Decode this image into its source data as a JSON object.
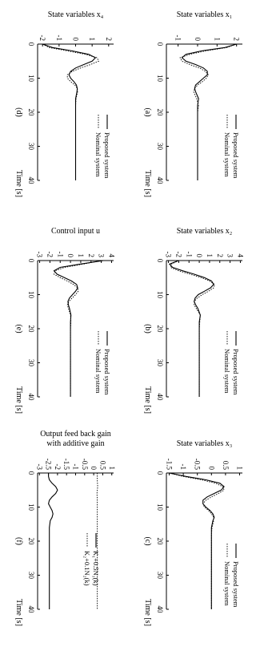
{
  "chart_data": [
    {
      "type": "line",
      "panel_label": "(a)",
      "ylabel": "State variables x₁",
      "xlabel": "Time [s]",
      "xlim": [
        0,
        40
      ],
      "ylim": [
        -1.6,
        2.3
      ],
      "xticks": [
        "0",
        "10",
        "20",
        "30",
        "40"
      ],
      "yticks": [
        "2",
        "1",
        "0",
        "-1"
      ],
      "ytick_values": [
        2,
        1,
        0,
        -1
      ],
      "legend_position": "top-right",
      "series": [
        {
          "name": "Proposed system",
          "style": "solid",
          "x": [
            0,
            1,
            2,
            3,
            4,
            5,
            6,
            7,
            8,
            9,
            10,
            11,
            12,
            13,
            14,
            16,
            18,
            20,
            24,
            28,
            32,
            36,
            40
          ],
          "y": [
            2.0,
            1.4,
            0.2,
            -0.6,
            -0.8,
            -0.6,
            -0.1,
            0.3,
            0.5,
            0.5,
            0.3,
            0.1,
            -0.1,
            -0.15,
            -0.1,
            0.05,
            0.0,
            0.0,
            0.0,
            0.0,
            0.0,
            0.0,
            0.0
          ]
        },
        {
          "name": "Nominal system",
          "style": "dotted",
          "x": [
            0,
            1,
            2,
            3,
            4,
            5,
            6,
            7,
            8,
            9,
            10,
            11,
            12,
            13,
            14,
            16,
            18,
            20,
            24,
            28,
            32,
            36,
            40
          ],
          "y": [
            2.0,
            1.5,
            0.4,
            -0.4,
            -0.9,
            -0.8,
            -0.4,
            0.1,
            0.4,
            0.55,
            0.45,
            0.25,
            0.0,
            -0.15,
            -0.2,
            -0.05,
            0.05,
            0.0,
            0.0,
            0.0,
            0.0,
            0.0,
            0.0
          ]
        }
      ]
    },
    {
      "type": "line",
      "panel_label": "(b)",
      "ylabel": "State variables x₂",
      "xlabel": "Time [s]",
      "xlim": [
        0,
        40
      ],
      "ylim": [
        -3.2,
        4.2
      ],
      "xticks": [
        "0",
        "10",
        "20",
        "30",
        "40"
      ],
      "yticks": [
        "4",
        "3",
        "2",
        "1",
        "0",
        "-1",
        "-2",
        "-3"
      ],
      "ytick_values": [
        4,
        3,
        2,
        1,
        0,
        -1,
        -2,
        -3
      ],
      "legend_position": "top-right",
      "series": [
        {
          "name": "Proposed system",
          "style": "solid",
          "x": [
            0,
            1,
            2,
            3,
            4,
            5,
            6,
            7,
            8,
            9,
            10,
            11,
            12,
            13,
            14,
            16,
            18,
            20,
            24,
            28,
            32,
            36,
            40
          ],
          "y": [
            -2.0,
            -2.9,
            -2.6,
            -1.6,
            -0.5,
            0.5,
            1.2,
            1.4,
            1.1,
            0.5,
            -0.1,
            -0.4,
            -0.5,
            -0.35,
            -0.15,
            0.1,
            0.0,
            0.0,
            0.0,
            0.0,
            0.0,
            0.0,
            0.0
          ]
        },
        {
          "name": "Nominal system",
          "style": "dotted",
          "x": [
            0,
            1,
            2,
            3,
            4,
            5,
            6,
            7,
            8,
            9,
            10,
            11,
            12,
            13,
            14,
            16,
            18,
            20,
            24,
            28,
            32,
            36,
            40
          ],
          "y": [
            -2.0,
            -2.7,
            -2.8,
            -2.0,
            -0.9,
            0.2,
            1.0,
            1.5,
            1.4,
            0.9,
            0.3,
            -0.2,
            -0.5,
            -0.5,
            -0.3,
            0.1,
            0.05,
            0.0,
            0.0,
            0.0,
            0.0,
            0.0,
            0.0
          ]
        }
      ]
    },
    {
      "type": "line",
      "panel_label": "(c)",
      "ylabel": "State variables x₃",
      "xlabel": "Time [s]",
      "xlim": [
        0,
        40
      ],
      "ylim": [
        -1.6,
        1.1
      ],
      "xticks": [
        "0",
        "10",
        "20",
        "30",
        "40"
      ],
      "yticks": [
        "1",
        "0.5",
        "0",
        "-0.5",
        "-1",
        "-1.5"
      ],
      "ytick_values": [
        1,
        0.5,
        0,
        -0.5,
        -1,
        -1.5
      ],
      "legend_position": "top-right",
      "series": [
        {
          "name": "Proposed system",
          "style": "solid",
          "x": [
            0,
            1,
            2,
            3,
            4,
            5,
            6,
            7,
            8,
            9,
            10,
            11,
            12,
            13,
            14,
            16,
            18,
            20,
            24,
            28,
            32,
            36,
            40
          ],
          "y": [
            -1.5,
            -0.9,
            -0.2,
            0.3,
            0.45,
            0.35,
            0.1,
            -0.15,
            -0.3,
            -0.3,
            -0.2,
            -0.05,
            0.05,
            0.1,
            0.05,
            0.0,
            0.0,
            0.0,
            0.0,
            0.0,
            0.0,
            0.0,
            0.0
          ]
        },
        {
          "name": "Nominal system",
          "style": "dotted",
          "x": [
            0,
            1,
            2,
            3,
            4,
            5,
            6,
            7,
            8,
            9,
            10,
            11,
            12,
            13,
            14,
            16,
            18,
            20,
            24,
            28,
            32,
            36,
            40
          ],
          "y": [
            -1.5,
            -1.0,
            -0.35,
            0.15,
            0.4,
            0.45,
            0.25,
            0.0,
            -0.2,
            -0.3,
            -0.25,
            -0.1,
            0.0,
            0.08,
            0.08,
            0.02,
            0.0,
            0.0,
            0.0,
            0.0,
            0.0,
            0.0,
            0.0
          ]
        }
      ]
    },
    {
      "type": "line",
      "panel_label": "(d)",
      "ylabel": "State variables x₄",
      "xlabel": "Time [s]",
      "xlim": [
        0,
        40
      ],
      "ylim": [
        -2.3,
        2.3
      ],
      "xticks": [
        "0",
        "10",
        "20",
        "30",
        "40"
      ],
      "yticks": [
        "2",
        "1",
        "0",
        "-1",
        "-2"
      ],
      "ytick_values": [
        2,
        1,
        0,
        -1,
        -2
      ],
      "legend_position": "top-right",
      "series": [
        {
          "name": "Proposed system",
          "style": "solid",
          "x": [
            0,
            1,
            2,
            3,
            4,
            5,
            6,
            7,
            8,
            9,
            10,
            11,
            12,
            13,
            14,
            16,
            18,
            20,
            24,
            28,
            32,
            36,
            40
          ],
          "y": [
            -2.0,
            -1.4,
            -0.2,
            0.8,
            1.2,
            1.0,
            0.5,
            0.0,
            -0.3,
            -0.4,
            -0.3,
            -0.1,
            0.05,
            0.1,
            0.08,
            0.0,
            0.0,
            0.0,
            0.0,
            0.0,
            0.0,
            0.0,
            0.0
          ]
        },
        {
          "name": "Nominal system",
          "style": "dotted",
          "x": [
            0,
            1,
            2,
            3,
            4,
            5,
            6,
            7,
            8,
            9,
            10,
            11,
            12,
            13,
            14,
            16,
            18,
            20,
            24,
            28,
            32,
            36,
            40
          ],
          "y": [
            -2.0,
            -1.6,
            -0.5,
            0.6,
            1.3,
            1.4,
            0.9,
            0.3,
            -0.2,
            -0.5,
            -0.5,
            -0.3,
            -0.05,
            0.1,
            0.12,
            0.03,
            0.0,
            0.0,
            0.0,
            0.0,
            0.0,
            0.0,
            0.0
          ]
        }
      ]
    },
    {
      "type": "line",
      "panel_label": "(e)",
      "ylabel": "Control input u",
      "xlabel": "Time [s]",
      "xlim": [
        0,
        40
      ],
      "ylim": [
        -3.2,
        4.2
      ],
      "xticks": [
        "0",
        "10",
        "20",
        "30",
        "40"
      ],
      "yticks": [
        "4",
        "3",
        "2",
        "1",
        "0",
        "-1",
        "-2",
        "-3"
      ],
      "ytick_values": [
        4,
        3,
        2,
        1,
        0,
        -1,
        -2,
        -3
      ],
      "legend_position": "top-right",
      "series": [
        {
          "name": "Proposed system",
          "style": "solid",
          "x": [
            0,
            1,
            2,
            3,
            4,
            5,
            6,
            7,
            8,
            9,
            10,
            11,
            12,
            13,
            14,
            16,
            18,
            20,
            24,
            28,
            32,
            36,
            40
          ],
          "y": [
            3.2,
            1.0,
            -1.0,
            -1.6,
            -1.3,
            -0.6,
            0.1,
            0.6,
            0.7,
            0.5,
            0.2,
            -0.1,
            -0.25,
            -0.2,
            -0.1,
            0.05,
            0.0,
            0.0,
            0.0,
            0.0,
            0.0,
            0.0,
            0.0
          ]
        },
        {
          "name": "Nominal system",
          "style": "dotted",
          "x": [
            0,
            1,
            2,
            3,
            4,
            5,
            6,
            7,
            8,
            9,
            10,
            11,
            12,
            13,
            14,
            16,
            18,
            20,
            24,
            28,
            32,
            36,
            40
          ],
          "y": [
            3.0,
            1.3,
            -0.6,
            -1.5,
            -1.6,
            -1.0,
            -0.3,
            0.3,
            0.7,
            0.75,
            0.5,
            0.15,
            -0.15,
            -0.3,
            -0.2,
            0.0,
            0.05,
            0.0,
            0.0,
            0.0,
            0.0,
            0.0,
            0.0
          ]
        }
      ]
    },
    {
      "type": "line",
      "panel_label": "(f)",
      "ylabel": "Output feed back gain with additive gain",
      "xlabel": "Time [s]",
      "xlim": [
        0,
        40
      ],
      "ylim": [
        -3.1,
        1.1
      ],
      "xticks": [
        "0",
        "10",
        "20",
        "30",
        "40"
      ],
      "yticks": [
        "1",
        "0.5",
        "0",
        "-0.5",
        "-1",
        "-1.5",
        "-2",
        "-2.5",
        "-3"
      ],
      "ytick_values": [
        1,
        0.5,
        0,
        -0.5,
        -1,
        -1.5,
        -2,
        -2.5,
        -3
      ],
      "legend_position": "center",
      "series": [
        {
          "name": "K₁+0.5N₁(k)",
          "style": "solid",
          "x": [
            0,
            1,
            2,
            3,
            4,
            5,
            6,
            7,
            8,
            9,
            10,
            11,
            12,
            13,
            14,
            16,
            18,
            20,
            24,
            28,
            32,
            36,
            40
          ],
          "y": [
            -2.5,
            -2.5,
            -2.45,
            -2.3,
            -2.1,
            -2.0,
            -2.1,
            -2.3,
            -2.45,
            -2.5,
            -2.4,
            -2.3,
            -2.25,
            -2.3,
            -2.4,
            -2.45,
            -2.45,
            -2.45,
            -2.45,
            -2.45,
            -2.45,
            -2.45,
            -2.45
          ]
        },
        {
          "name": "K₂+0.1N₂(k)",
          "style": "dotted",
          "x": [
            0,
            2,
            4,
            6,
            8,
            10,
            14,
            20,
            25,
            30,
            35,
            40
          ],
          "y": [
            0.2,
            0.2,
            0.22,
            0.18,
            0.2,
            0.2,
            0.2,
            0.2,
            0.2,
            0.2,
            0.2,
            0.2
          ]
        }
      ]
    }
  ]
}
